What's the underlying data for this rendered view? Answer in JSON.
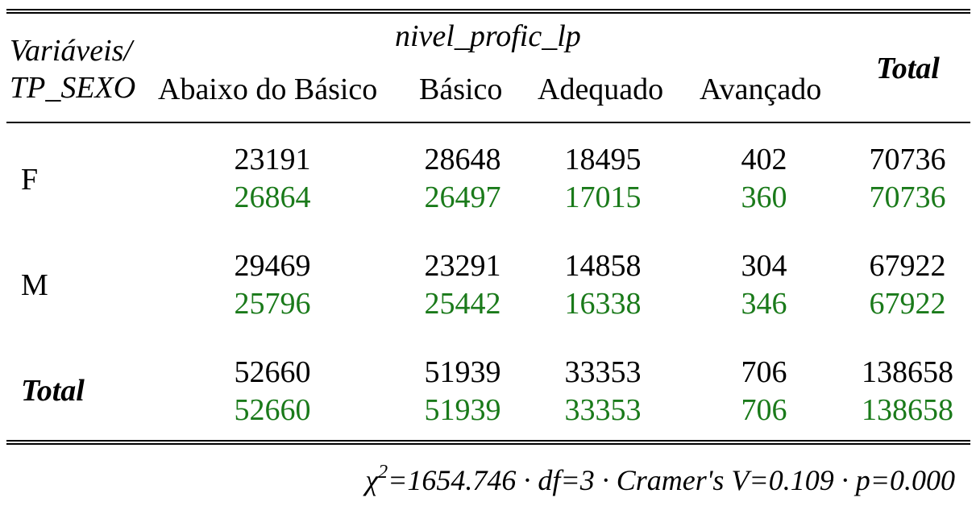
{
  "header": {
    "var_label_line1": "Variáveis/",
    "var_label_line2": "TP_SEXO",
    "group_label": "nivel_profic_lp",
    "columns": [
      "Abaixo do Básico",
      "Básico",
      "Adequado",
      "Avançado"
    ],
    "total_label": "Total"
  },
  "rows": [
    {
      "label": "F",
      "observed": [
        "23191",
        "28648",
        "18495",
        "402",
        "70736"
      ],
      "expected": [
        "26864",
        "26497",
        "17015",
        "360",
        "70736"
      ]
    },
    {
      "label": "M",
      "observed": [
        "29469",
        "23291",
        "14858",
        "304",
        "67922"
      ],
      "expected": [
        "25796",
        "25442",
        "16338",
        "346",
        "67922"
      ]
    },
    {
      "label": "Total",
      "observed": [
        "52660",
        "51939",
        "33353",
        "706",
        "138658"
      ],
      "expected": [
        "52660",
        "51939",
        "33353",
        "706",
        "138658"
      ]
    }
  ],
  "footer": {
    "chi_symbol": "χ",
    "chi_exp": "2",
    "stats": "=1654.746 · df=3 · Cramer's V=0.109 · p=0.000"
  },
  "colors": {
    "expected": "#1a7a1a",
    "observed": "#000000"
  }
}
